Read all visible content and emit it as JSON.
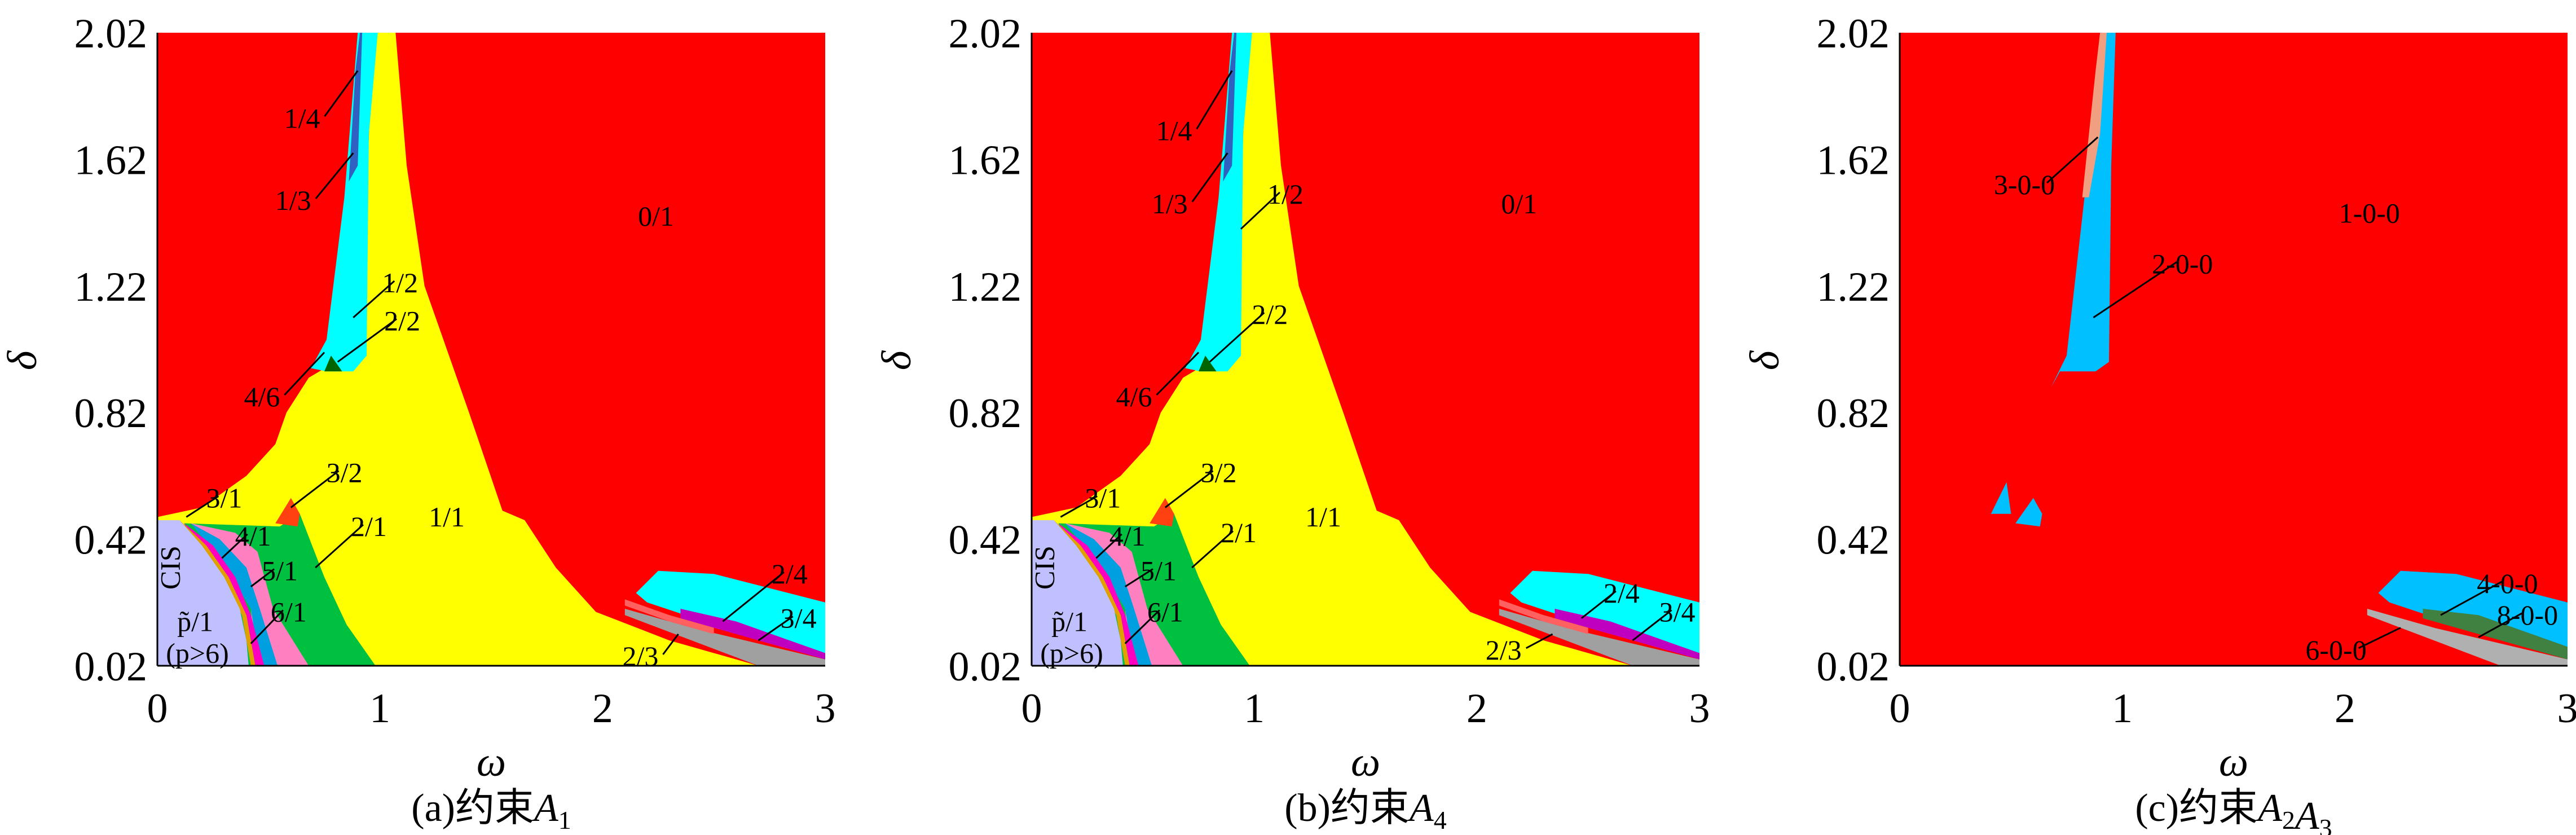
{
  "chart_data": [
    {
      "type": "heatmap",
      "caption_prefix": "(a)约束",
      "caption_var": "A",
      "caption_subs": [
        "1"
      ],
      "xlabel": "ω",
      "ylabel": "δ",
      "xlim": [
        0,
        3
      ],
      "ylim": [
        0.02,
        2.02
      ],
      "xticks": [
        "0",
        "1",
        "2",
        "3"
      ],
      "yticks": [
        "0.02",
        "0.42",
        "0.82",
        "1.22",
        "1.62",
        "2.02"
      ],
      "background": {
        "label": "0/1",
        "color": "#ff0000"
      },
      "regions": [
        {
          "label": "1/1",
          "color": "#ffff00",
          "points": [
            [
              0,
              0.02
            ],
            [
              0,
              0.49
            ],
            [
              0.2,
              0.52
            ],
            [
              0.4,
              0.62
            ],
            [
              0.53,
              0.72
            ],
            [
              0.58,
              0.82
            ],
            [
              0.68,
              0.93
            ],
            [
              0.8,
              0.98
            ],
            [
              0.92,
              1.2
            ],
            [
              0.97,
              2.02
            ],
            [
              1.07,
              2.02
            ],
            [
              1.12,
              1.6
            ],
            [
              1.2,
              1.22
            ],
            [
              1.4,
              0.82
            ],
            [
              1.55,
              0.51
            ],
            [
              1.65,
              0.48
            ],
            [
              1.79,
              0.33
            ],
            [
              1.97,
              0.19
            ],
            [
              2.3,
              0.1
            ],
            [
              2.7,
              0.02
            ]
          ]
        },
        {
          "label": "1/2",
          "color": "#00ffff",
          "points": [
            [
              0.69,
              0.96
            ],
            [
              0.76,
              1.05
            ],
            [
              0.84,
              1.5
            ],
            [
              0.9,
              2.02
            ],
            [
              0.99,
              2.02
            ],
            [
              0.95,
              1.7
            ],
            [
              0.94,
              1.0
            ],
            [
              0.88,
              0.95
            ],
            [
              0.76,
              0.95
            ]
          ]
        },
        {
          "label": "1/3",
          "color": "#3060c0",
          "points": [
            [
              0.86,
              1.55
            ],
            [
              0.89,
              1.9
            ],
            [
              0.91,
              2.02
            ],
            [
              0.92,
              2.02
            ],
            [
              0.9,
              1.6
            ]
          ]
        },
        {
          "label": "2/2",
          "color": "#006400",
          "points": [
            [
              0.75,
              0.95
            ],
            [
              0.78,
              1.0
            ],
            [
              0.83,
              0.95
            ]
          ]
        },
        {
          "label": "2/1",
          "color": "#00c040",
          "points": [
            [
              0.12,
              0.47
            ],
            [
              0.55,
              0.46
            ],
            [
              0.64,
              0.5
            ],
            [
              0.75,
              0.3
            ],
            [
              0.85,
              0.15
            ],
            [
              0.98,
              0.02
            ],
            [
              0.4,
              0.02
            ]
          ]
        },
        {
          "label": "6/1",
          "color": "#ff80c0",
          "points": [
            [
              0.15,
              0.47
            ],
            [
              0.35,
              0.44
            ],
            [
              0.45,
              0.38
            ],
            [
              0.52,
              0.2
            ],
            [
              0.68,
              0.02
            ],
            [
              0.44,
              0.02
            ],
            [
              0.42,
              0.2
            ],
            [
              0.3,
              0.35
            ]
          ]
        },
        {
          "label": "5/1",
          "color": "#00a0e0",
          "points": [
            [
              0.15,
              0.47
            ],
            [
              0.28,
              0.42
            ],
            [
              0.4,
              0.33
            ],
            [
              0.46,
              0.2
            ],
            [
              0.54,
              0.02
            ],
            [
              0.46,
              0.02
            ],
            [
              0.42,
              0.2
            ],
            [
              0.3,
              0.34
            ]
          ]
        },
        {
          "label": "4/1",
          "color": "#ff00c0",
          "points": [
            [
              0.12,
              0.47
            ],
            [
              0.25,
              0.4
            ],
            [
              0.35,
              0.3
            ],
            [
              0.42,
              0.18
            ],
            [
              0.48,
              0.02
            ],
            [
              0.44,
              0.02
            ],
            [
              0.4,
              0.18
            ],
            [
              0.3,
              0.3
            ]
          ]
        },
        {
          "label": "3/1",
          "color": "#e0a000",
          "points": [
            [
              0.1,
              0.48
            ],
            [
              0.22,
              0.4
            ],
            [
              0.32,
              0.3
            ],
            [
              0.4,
              0.18
            ],
            [
              0.44,
              0.02
            ],
            [
              0.42,
              0.02
            ],
            [
              0.38,
              0.18
            ],
            [
              0.28,
              0.3
            ]
          ]
        },
        {
          "label": "CIS",
          "color": "#c0c0ff",
          "points": [
            [
              0,
              0.02
            ],
            [
              0,
              0.48
            ],
            [
              0.1,
              0.48
            ],
            [
              0.2,
              0.4
            ],
            [
              0.3,
              0.3
            ],
            [
              0.37,
              0.2
            ],
            [
              0.4,
              0.1
            ],
            [
              0.41,
              0.02
            ]
          ]
        },
        {
          "label": "3/2",
          "color": "#ff4010",
          "points": [
            [
              0.53,
              0.47
            ],
            [
              0.6,
              0.55
            ],
            [
              0.64,
              0.5
            ],
            [
              0.63,
              0.46
            ]
          ]
        },
        {
          "label": "2/4",
          "color": "#00ffff",
          "points": [
            [
              2.15,
              0.25
            ],
            [
              2.25,
              0.32
            ],
            [
              2.5,
              0.31
            ],
            [
              3,
              0.22
            ],
            [
              3,
              0.04
            ],
            [
              2.5,
              0.15
            ],
            [
              2.2,
              0.22
            ]
          ]
        },
        {
          "label": "2/4",
          "color": "#c000c0",
          "points": [
            [
              2.35,
              0.2
            ],
            [
              2.6,
              0.16
            ],
            [
              3,
              0.06
            ],
            [
              3,
              0.04
            ],
            [
              2.6,
              0.12
            ],
            [
              2.35,
              0.17
            ]
          ]
        },
        {
          "label": "3/4",
          "color": "#a0a0a0",
          "points": [
            [
              2.1,
              0.2
            ],
            [
              2.4,
              0.14
            ],
            [
              3,
              0.04
            ],
            [
              3,
              0.02
            ],
            [
              2.7,
              0.02
            ],
            [
              2.4,
              0.1
            ],
            [
              2.1,
              0.18
            ]
          ]
        },
        {
          "label": "2/3",
          "color": "#ff6060",
          "points": [
            [
              2.1,
              0.23
            ],
            [
              2.3,
              0.18
            ],
            [
              2.5,
              0.14
            ],
            [
              2.5,
              0.12
            ],
            [
              2.3,
              0.16
            ],
            [
              2.1,
              0.21
            ]
          ]
        }
      ],
      "annotations": [
        "1/4",
        "1/3",
        "0/1",
        "1/2",
        "2/2",
        "4/6",
        "3/2",
        "3/1",
        "1/1",
        "4/1",
        "2/1",
        "5/1",
        "6/1",
        "CIS",
        "p̃/1",
        "(p>6)",
        "2/4",
        "3/4",
        "2/3"
      ]
    },
    {
      "type": "heatmap",
      "caption_prefix": "(b)约束",
      "caption_var": "A",
      "caption_subs": [
        "4"
      ],
      "xlabel": "ω",
      "ylabel": "δ",
      "xlim": [
        0,
        3
      ],
      "ylim": [
        0.02,
        2.02
      ],
      "xticks": [
        "0",
        "1",
        "2",
        "3"
      ],
      "yticks": [
        "0.02",
        "0.42",
        "0.82",
        "1.22",
        "1.62",
        "2.02"
      ],
      "background": {
        "label": "0/1",
        "color": "#ff0000"
      },
      "regions": "same as (a)",
      "annotations": [
        "1/4",
        "1/3",
        "0/1",
        "1/2",
        "2/2",
        "4/6",
        "3/2",
        "3/1",
        "1/1",
        "4/1",
        "2/1",
        "5/1",
        "6/1",
        "CIS",
        "p̃/1",
        "(p>6)",
        "2/4",
        "3/4",
        "2/3"
      ]
    },
    {
      "type": "heatmap",
      "caption_prefix": "(c)约束",
      "caption_var": "A",
      "caption_subs": [
        "2",
        "3"
      ],
      "xlabel": "ω",
      "ylabel": "δ",
      "xlim": [
        0,
        3
      ],
      "ylim": [
        0.02,
        2.02
      ],
      "xticks": [
        "0",
        "1",
        "2",
        "3"
      ],
      "yticks": [
        "0.02",
        "0.42",
        "0.82",
        "1.22",
        "1.62",
        "2.02"
      ],
      "background": {
        "label": "1-0-0",
        "color": "#ff0000"
      },
      "regions": [
        {
          "label": "2-0-0",
          "color": "#00c0ff",
          "points": [
            [
              0.68,
              0.9
            ],
            [
              0.75,
              1.0
            ],
            [
              0.83,
              1.5
            ],
            [
              0.9,
              2.02
            ],
            [
              0.97,
              2.02
            ],
            [
              0.95,
              1.6
            ],
            [
              0.94,
              0.98
            ],
            [
              0.88,
              0.95
            ],
            [
              0.72,
              0.95
            ]
          ]
        },
        {
          "label": "3-0-0",
          "color": "#f0a080",
          "points": [
            [
              0.82,
              1.5
            ],
            [
              0.88,
              1.9
            ],
            [
              0.9,
              2.02
            ],
            [
              0.93,
              2.02
            ],
            [
              0.9,
              1.7
            ],
            [
              0.85,
              1.5
            ]
          ]
        },
        {
          "label": "2-0-0",
          "color": "#00c0ff",
          "points": [
            [
              0.41,
              0.5
            ],
            [
              0.48,
              0.6
            ],
            [
              0.5,
              0.5
            ]
          ]
        },
        {
          "label": "2-0-0",
          "color": "#00c0ff",
          "points": [
            [
              0.52,
              0.47
            ],
            [
              0.6,
              0.55
            ],
            [
              0.64,
              0.5
            ],
            [
              0.63,
              0.46
            ]
          ]
        },
        {
          "label": "4-0-0",
          "color": "#00c0ff",
          "points": [
            [
              2.15,
              0.25
            ],
            [
              2.25,
              0.32
            ],
            [
              2.5,
              0.31
            ],
            [
              3,
              0.22
            ],
            [
              3,
              0.04
            ],
            [
              2.5,
              0.15
            ],
            [
              2.2,
              0.22
            ]
          ]
        },
        {
          "label": "8-0-0",
          "color": "#408040",
          "points": [
            [
              2.35,
              0.2
            ],
            [
              2.6,
              0.18
            ],
            [
              3,
              0.08
            ],
            [
              3,
              0.04
            ],
            [
              2.6,
              0.12
            ],
            [
              2.35,
              0.17
            ]
          ]
        },
        {
          "label": "6-0-0",
          "color": "#b0b0b0",
          "points": [
            [
              2.1,
              0.2
            ],
            [
              2.4,
              0.14
            ],
            [
              3,
              0.04
            ],
            [
              3,
              0.02
            ],
            [
              2.7,
              0.02
            ],
            [
              2.4,
              0.1
            ],
            [
              2.1,
              0.18
            ]
          ]
        }
      ],
      "annotations": [
        "3-0-0",
        "1-0-0",
        "2-0-0",
        "4-0-0",
        "8-0-0",
        "6-0-0"
      ]
    }
  ]
}
